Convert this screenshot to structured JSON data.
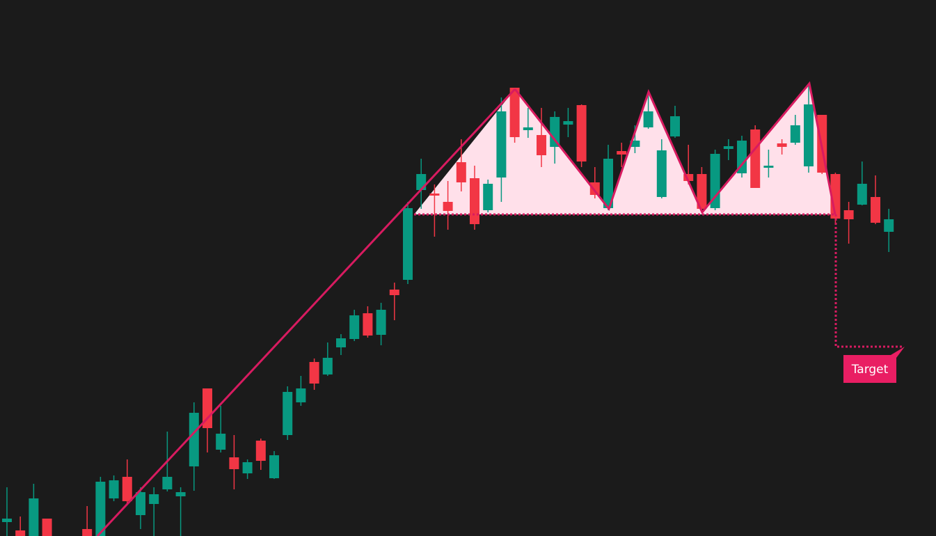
{
  "chart_data": {
    "type": "candlestick",
    "x": [
      0,
      1,
      2,
      3,
      6,
      7,
      8,
      9,
      10,
      11,
      12,
      13,
      14,
      15,
      16,
      17,
      18,
      19,
      20,
      21,
      22,
      23,
      24,
      25,
      26,
      27,
      28,
      29,
      30,
      31,
      32,
      33,
      34,
      35,
      36,
      37,
      38,
      39,
      40,
      41,
      42,
      43,
      44,
      45,
      46,
      47,
      48,
      49,
      50,
      51,
      52,
      53,
      54,
      55,
      56,
      57,
      58,
      59,
      60,
      61,
      62,
      63,
      64,
      65,
      66
    ],
    "open": [
      20,
      8,
      0,
      25,
      10,
      0,
      54,
      85,
      30,
      46,
      67,
      57,
      100,
      212,
      124,
      113,
      90,
      137,
      83,
      145,
      192,
      250,
      232,
      271,
      283,
      320,
      289,
      354,
      368,
      497,
      492,
      480,
      537,
      514,
      468,
      515,
      644,
      583,
      576,
      559,
      591,
      619,
      508,
      471,
      553,
      559,
      587,
      487,
      574,
      520,
      520,
      471,
      556,
      521,
      584,
      529,
      564,
      565,
      531,
      605,
      520,
      468,
      476,
      487,
      437
    ],
    "high": [
      70,
      28,
      75,
      25,
      43,
      85,
      87,
      110,
      70,
      70,
      150,
      70,
      192,
      212,
      187,
      145,
      110,
      140,
      122,
      215,
      230,
      255,
      278,
      290,
      325,
      330,
      335,
      364,
      480,
      542,
      505,
      510,
      570,
      532,
      512,
      630,
      644,
      615,
      615,
      610,
      615,
      620,
      530,
      562,
      565,
      590,
      638,
      570,
      618,
      562,
      530,
      555,
      570,
      575,
      590,
      555,
      570,
      605,
      650,
      605,
      522,
      480,
      538,
      518,
      470
    ],
    "low": [
      0,
      0,
      0,
      0,
      0,
      0,
      50,
      45,
      10,
      0,
      64,
      0,
      65,
      120,
      120,
      67,
      82,
      95,
      82,
      138,
      187,
      210,
      230,
      260,
      280,
      285,
      274,
      310,
      362,
      470,
      430,
      440,
      495,
      440,
      465,
      480,
      565,
      572,
      530,
      535,
      573,
      530,
      485,
      468,
      530,
      550,
      585,
      485,
      572,
      505,
      465,
      468,
      540,
      515,
      500,
      515,
      548,
      562,
      522,
      520,
      450,
      420,
      475,
      448,
      408
    ],
    "close": [
      25,
      0,
      54,
      0,
      0,
      78,
      80,
      50,
      63,
      60,
      85,
      63,
      177,
      155,
      147,
      96,
      106,
      108,
      116,
      207,
      212,
      219,
      256,
      284,
      317,
      288,
      325,
      346,
      471,
      520,
      489,
      467,
      508,
      448,
      506,
      610,
      573,
      587,
      547,
      602,
      596,
      538,
      490,
      542,
      548,
      568,
      610,
      554,
      603,
      510,
      470,
      549,
      560,
      568,
      500,
      532,
      559,
      590,
      620,
      522,
      456,
      455,
      506,
      450,
      455
    ],
    "up_color": "#089981",
    "down_color": "#f23645",
    "xlim": [
      -0.52,
      69.53
    ],
    "ylim": [
      0,
      770
    ],
    "annotation": "Target"
  }
}
